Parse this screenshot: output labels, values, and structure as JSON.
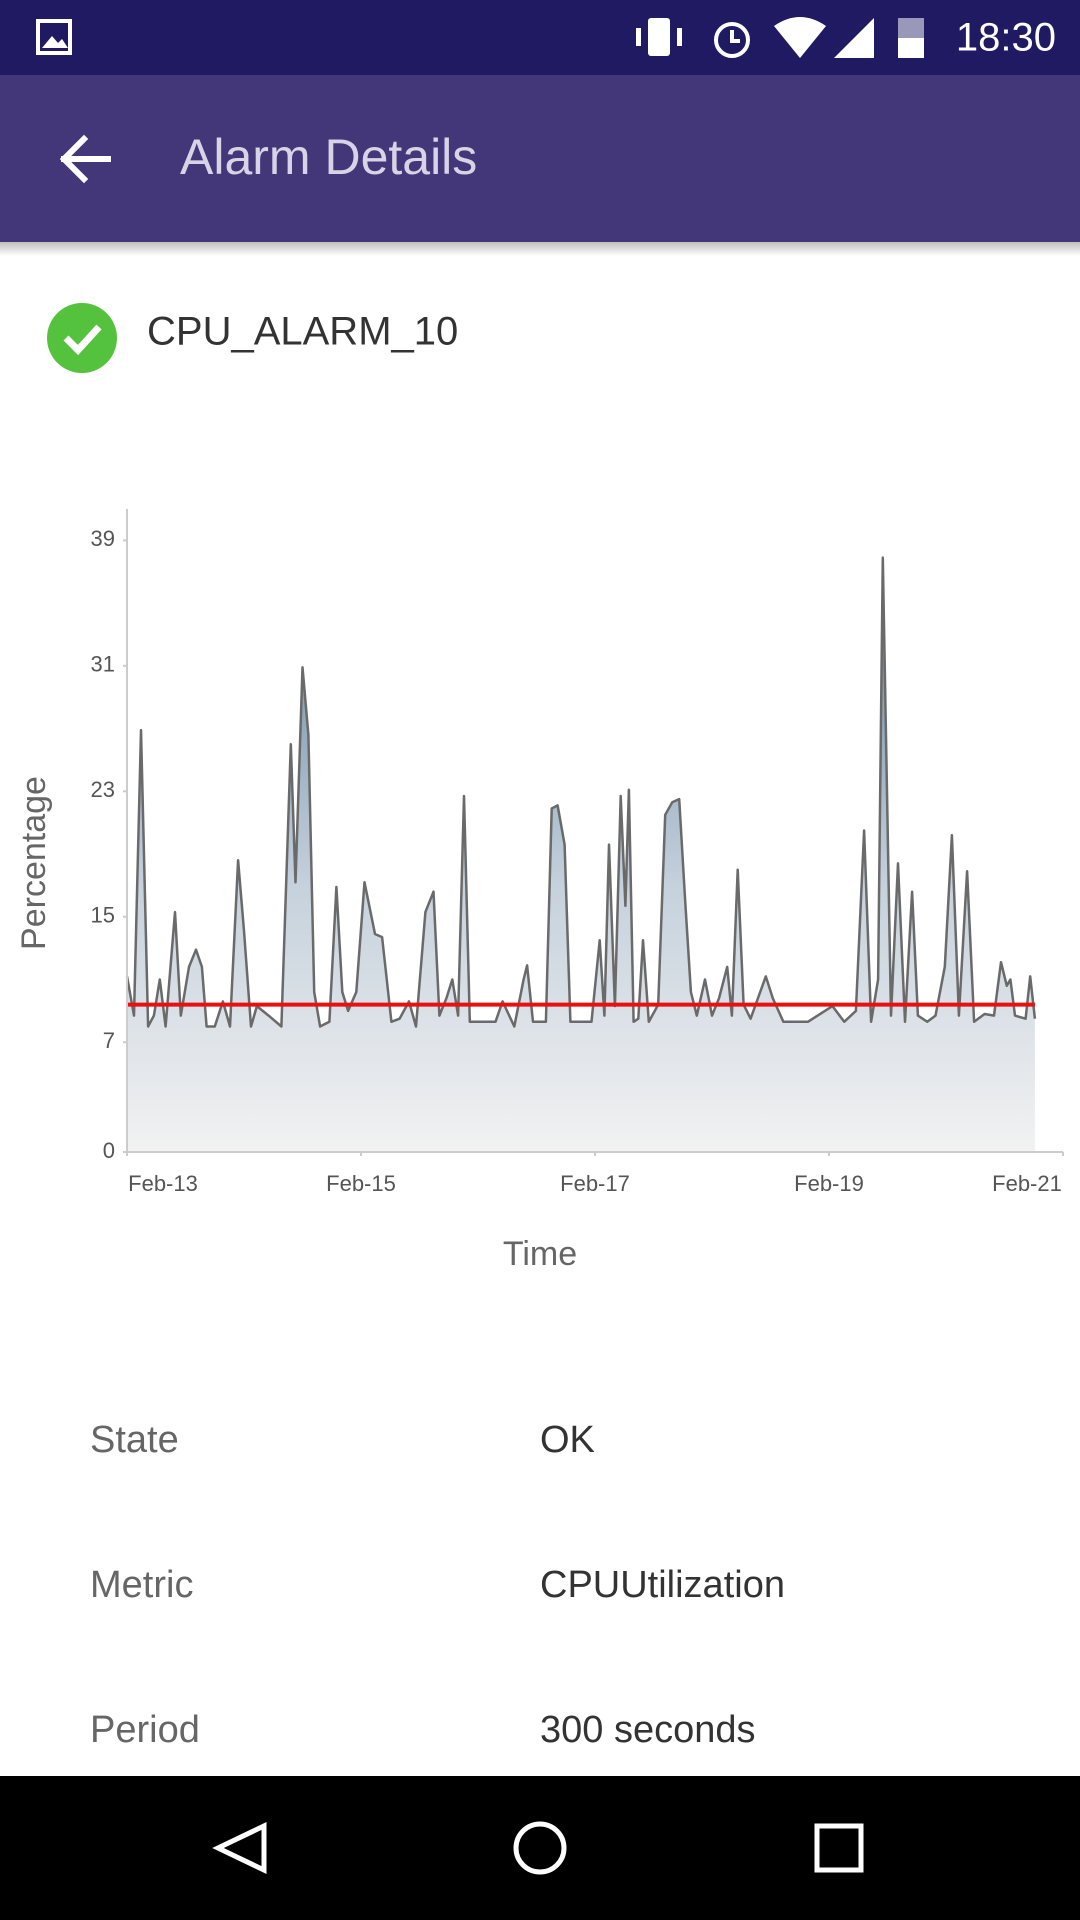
{
  "status_bar": {
    "time": "18:30"
  },
  "app_bar": {
    "title": "Alarm Details"
  },
  "alarm": {
    "name": "CPU_ALARM_10"
  },
  "chart_data": {
    "type": "area",
    "xlabel": "Time",
    "ylabel": "Percentage",
    "x": [
      13.0,
      13.06,
      13.12,
      13.18,
      13.23,
      13.28,
      13.33,
      13.41,
      13.46,
      13.53,
      13.59,
      13.64,
      13.68,
      13.75,
      13.82,
      13.88,
      13.95,
      14.0,
      14.06,
      14.11,
      14.21,
      14.32,
      14.4,
      14.44,
      14.5,
      14.55,
      14.6,
      14.65,
      14.73,
      14.79,
      14.84,
      14.89,
      14.96,
      15.03,
      15.12,
      15.18,
      15.26,
      15.33,
      15.41,
      15.47,
      15.55,
      15.62,
      15.67,
      15.73,
      15.78,
      15.83,
      15.88,
      15.93,
      16.15,
      16.21,
      16.31,
      16.39,
      16.42,
      16.47,
      16.58,
      16.63,
      16.68,
      16.74,
      16.79,
      16.97,
      17.04,
      17.08,
      17.12,
      17.17,
      17.22,
      17.26,
      17.29,
      17.33,
      17.37,
      17.41,
      17.46,
      17.54,
      17.6,
      17.66,
      17.72,
      17.77,
      17.82,
      17.87,
      17.94,
      18.0,
      18.06,
      18.13,
      18.17,
      18.22,
      18.27,
      18.33,
      18.46,
      18.52,
      18.61,
      18.82,
      19.03,
      19.13,
      19.23,
      19.3,
      19.36,
      19.42,
      19.46,
      19.53,
      19.59,
      19.65,
      19.71,
      19.76,
      19.84,
      19.91,
      19.99,
      20.05,
      20.11,
      20.18,
      20.24,
      20.33,
      20.41,
      20.47,
      20.52,
      20.55,
      20.59,
      20.68,
      20.72,
      20.76
    ],
    "values": [
      11.2,
      8.7,
      26.9,
      8.0,
      8.7,
      11.0,
      8.0,
      15.3,
      8.7,
      11.8,
      12.9,
      11.8,
      8.0,
      8.0,
      9.6,
      8.0,
      18.6,
      14.1,
      8.0,
      9.3,
      8.7,
      8.0,
      26.0,
      17.2,
      30.9,
      26.6,
      10.2,
      8.0,
      8.3,
      16.9,
      10.2,
      9.0,
      10.2,
      17.2,
      13.9,
      13.7,
      8.3,
      8.5,
      9.6,
      8.0,
      15.3,
      16.6,
      8.7,
      9.8,
      11.0,
      8.7,
      22.7,
      8.3,
      8.3,
      9.6,
      8.0,
      11.0,
      11.9,
      8.3,
      8.3,
      21.9,
      22.1,
      19.6,
      8.3,
      8.3,
      13.5,
      8.7,
      19.6,
      9.3,
      22.7,
      15.7,
      23.1,
      8.3,
      8.5,
      13.5,
      8.3,
      9.4,
      21.5,
      22.3,
      22.5,
      16.1,
      10.2,
      8.7,
      11.0,
      8.7,
      9.8,
      11.8,
      8.7,
      18.0,
      9.4,
      8.5,
      11.2,
      9.8,
      8.3,
      8.3,
      9.3,
      8.3,
      9.0,
      20.5,
      8.3,
      11.0,
      37.9,
      8.7,
      18.4,
      8.3,
      16.6,
      8.7,
      8.3,
      8.7,
      11.8,
      20.2,
      8.7,
      17.9,
      8.3,
      8.8,
      8.7,
      12.1,
      10.6,
      11.0,
      8.7,
      8.5,
      11.2,
      8.5
    ],
    "color": "#6a6a6a",
    "threshold": 9.4,
    "threshold_color": "#e81010",
    "xlim": [
      13,
      21
    ],
    "xticks": [
      {
        "value": 13,
        "label": "Feb-13"
      },
      {
        "value": 15,
        "label": "Feb-15"
      },
      {
        "value": 17,
        "label": "Feb-17"
      },
      {
        "value": 19,
        "label": "Feb-19"
      },
      {
        "value": 21,
        "label": "Feb-21"
      }
    ],
    "ylim": [
      0,
      41
    ],
    "yticks": [
      0,
      7,
      15,
      23,
      31,
      39
    ],
    "grid": false
  },
  "details": [
    {
      "label": "State",
      "value": "OK"
    },
    {
      "label": "Metric",
      "value": "CPUUtilization"
    },
    {
      "label": "Period",
      "value": "300 seconds"
    }
  ]
}
